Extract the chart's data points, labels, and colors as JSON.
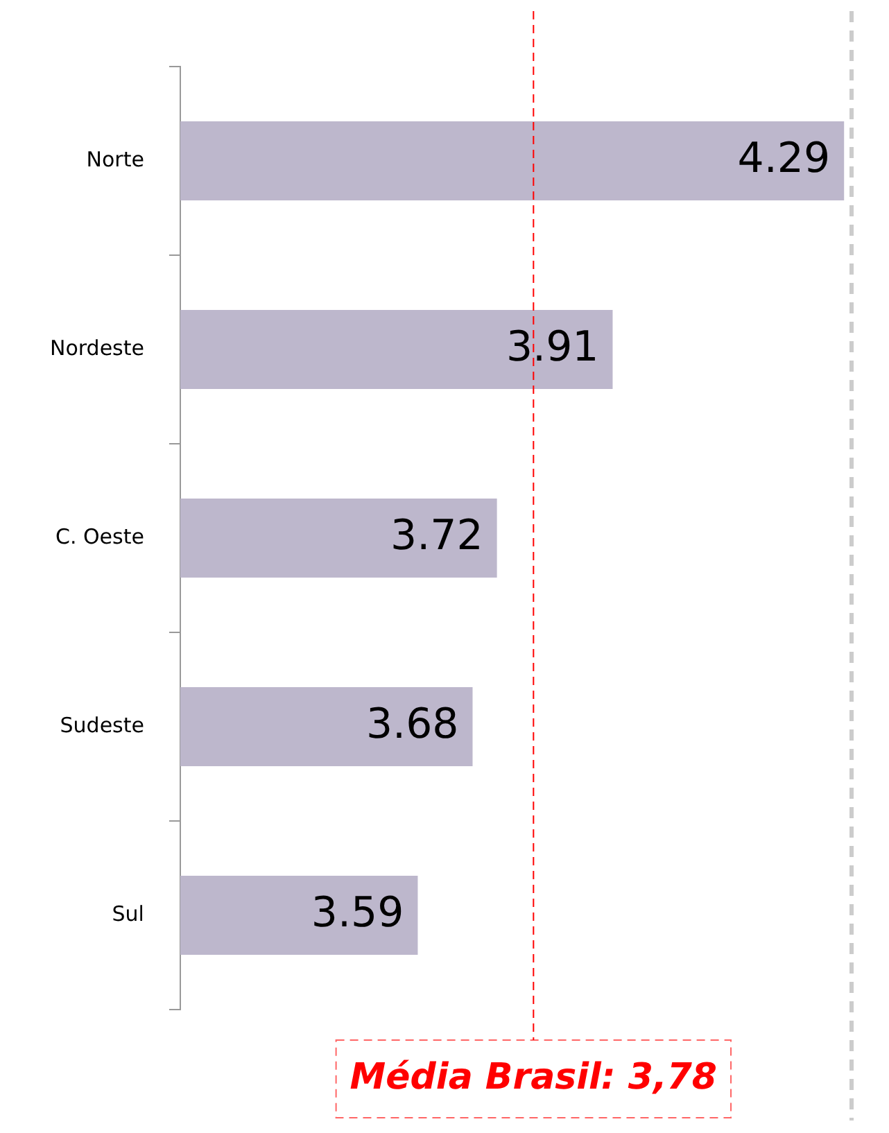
{
  "chart_data": {
    "type": "bar",
    "orientation": "horizontal",
    "categories": [
      "Norte",
      "Nordeste",
      "C. Oeste",
      "Sudeste",
      "Sul"
    ],
    "values": [
      4.29,
      3.91,
      3.72,
      3.68,
      3.59
    ],
    "color": "#bdb7cc",
    "xlim": [
      3.2,
      4.3
    ],
    "tick_labels": "y",
    "data_labels": true,
    "grid": false,
    "legend": false,
    "ref_lines": [
      {
        "axis": "x",
        "value": 3.78,
        "label": "Média Brasil: 3,78",
        "color": "#ff0000",
        "line_style": "dashed"
      }
    ]
  }
}
